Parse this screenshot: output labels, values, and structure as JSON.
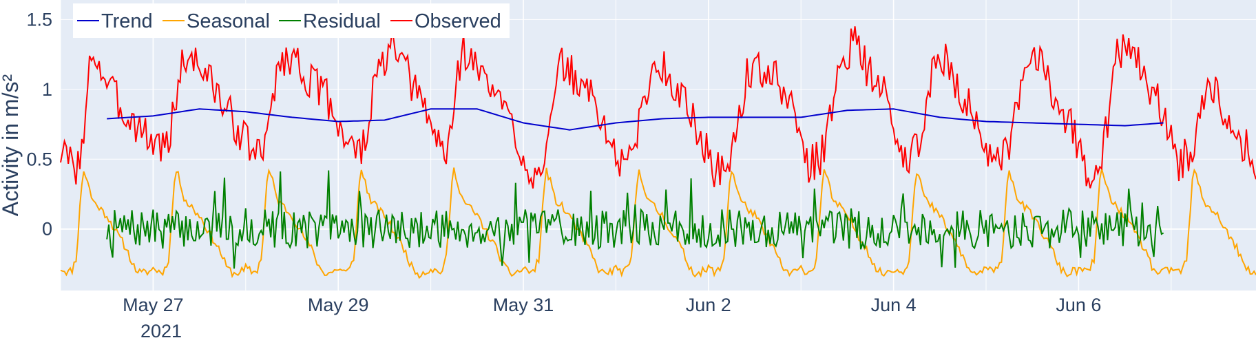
{
  "chart_data": {
    "type": "line",
    "title": "",
    "xlabel": "",
    "ylabel": "Activity in m/s²",
    "x_tick_labels": [
      "May 27",
      "May 29",
      "May 31",
      "Jun 2",
      "Jun 4",
      "Jun 6"
    ],
    "x_year_label": "2021",
    "x_tick_dates": [
      "2021-05-27",
      "2021-05-29",
      "2021-05-31",
      "2021-06-02",
      "2021-06-04",
      "2021-06-06"
    ],
    "xlim": [
      "2021-05-26 00:00",
      "2021-06-07 22:00"
    ],
    "y_ticks": [
      0,
      0.5,
      1,
      1.5
    ],
    "y_tick_labels": [
      "0",
      "0.5",
      "1",
      "1.5"
    ],
    "ylim": [
      -0.44,
      1.64
    ],
    "grid": true,
    "legend_position": "top-left",
    "series": [
      {
        "name": "Trend",
        "color": "#0000cc",
        "x": [
          "2021-05-26 12:00",
          "2021-05-27 00:00",
          "2021-05-27 12:00",
          "2021-05-28 00:00",
          "2021-05-28 12:00",
          "2021-05-29 00:00",
          "2021-05-29 12:00",
          "2021-05-30 00:00",
          "2021-05-30 12:00",
          "2021-05-31 00:00",
          "2021-05-31 12:00",
          "2021-06-01 00:00",
          "2021-06-01 12:00",
          "2021-06-02 00:00",
          "2021-06-02 12:00",
          "2021-06-03 00:00",
          "2021-06-03 12:00",
          "2021-06-04 00:00",
          "2021-06-04 12:00",
          "2021-06-05 00:00",
          "2021-06-05 12:00",
          "2021-06-06 00:00",
          "2021-06-06 12:00",
          "2021-06-06 22:00"
        ],
        "values": [
          0.79,
          0.81,
          0.86,
          0.84,
          0.8,
          0.77,
          0.78,
          0.86,
          0.86,
          0.76,
          0.71,
          0.76,
          0.79,
          0.8,
          0.8,
          0.8,
          0.85,
          0.86,
          0.8,
          0.77,
          0.76,
          0.75,
          0.74,
          0.76
        ]
      },
      {
        "name": "Seasonal",
        "color": "#ffa500",
        "period_hours": 24,
        "profile_hours": [
          0,
          2,
          3,
          4,
          4.5,
          5,
          5.5,
          6,
          7,
          8,
          9,
          10,
          11,
          12,
          13,
          14,
          15,
          16,
          17,
          18,
          19,
          20,
          21,
          22,
          23
        ],
        "profile_values": [
          -0.28,
          -0.31,
          -0.29,
          -0.21,
          -0.05,
          0.15,
          0.33,
          0.42,
          0.34,
          0.23,
          0.18,
          0.16,
          0.12,
          0.1,
          0.05,
          0.0,
          -0.05,
          -0.09,
          -0.14,
          -0.2,
          -0.27,
          -0.3,
          -0.32,
          -0.31,
          -0.3
        ]
      },
      {
        "name": "Residual",
        "color": "#008000",
        "x_start": "2021-05-26 12:00",
        "x_end": "2021-06-06 22:00",
        "center": 0.0,
        "amplitude": 0.14,
        "min": -0.33,
        "max": 0.42
      },
      {
        "name": "Observed",
        "color": "#ff0000",
        "x": [
          "2021-05-26 00:00",
          "2021-05-26 04:00",
          "2021-05-26 06:00",
          "2021-05-26 08:00",
          "2021-05-26 12:00",
          "2021-05-26 16:00",
          "2021-05-26 20:00",
          "2021-05-27 00:00",
          "2021-05-27 04:00",
          "2021-05-27 07:00",
          "2021-05-27 10:00",
          "2021-05-27 14:00",
          "2021-05-27 18:00",
          "2021-05-27 22:00",
          "2021-05-28 02:00",
          "2021-05-28 05:00",
          "2021-05-28 08:00",
          "2021-05-28 12:00",
          "2021-05-28 17:00",
          "2021-05-28 21:00",
          "2021-05-29 02:00",
          "2021-05-29 06:00",
          "2021-05-29 10:00",
          "2021-05-29 14:00",
          "2021-05-29 18:00",
          "2021-05-29 22:00",
          "2021-05-30 04:00",
          "2021-05-30 08:00",
          "2021-05-30 12:00",
          "2021-05-30 16:00",
          "2021-05-30 21:00",
          "2021-05-31 02:00",
          "2021-05-31 06:00",
          "2021-05-31 10:00",
          "2021-05-31 14:00",
          "2021-05-31 18:00",
          "2021-05-31 22:00",
          "2021-06-01 02:00",
          "2021-06-01 06:00",
          "2021-06-01 10:00",
          "2021-06-01 14:00",
          "2021-06-01 18:00",
          "2021-06-01 22:00",
          "2021-06-02 02:00",
          "2021-06-02 06:00",
          "2021-06-02 10:00",
          "2021-06-02 14:00",
          "2021-06-02 18:00",
          "2021-06-02 22:00",
          "2021-06-03 02:00",
          "2021-06-03 06:00",
          "2021-06-03 10:00",
          "2021-06-03 14:00",
          "2021-06-03 18:00",
          "2021-06-03 22:00",
          "2021-06-04 02:00",
          "2021-06-04 06:00",
          "2021-06-04 10:00",
          "2021-06-04 14:00",
          "2021-06-04 18:00",
          "2021-06-04 22:00",
          "2021-06-05 02:00",
          "2021-06-05 06:00",
          "2021-06-05 10:00",
          "2021-06-05 14:00",
          "2021-06-05 18:00",
          "2021-06-05 22:00",
          "2021-06-06 02:00",
          "2021-06-06 06:00",
          "2021-06-06 10:00",
          "2021-06-06 14:00",
          "2021-06-06 18:00",
          "2021-06-06 22:00",
          "2021-06-07 02:00",
          "2021-06-07 06:00",
          "2021-06-07 10:00",
          "2021-06-07 14:00",
          "2021-06-07 18:00",
          "2021-06-07 22:00"
        ],
        "values": [
          0.55,
          0.45,
          0.6,
          1.3,
          1.05,
          0.85,
          0.75,
          0.62,
          0.6,
          1.15,
          1.25,
          1.1,
          0.9,
          0.72,
          0.55,
          0.55,
          1.15,
          1.25,
          1.05,
          0.95,
          0.65,
          0.52,
          1.1,
          1.3,
          1.1,
          0.88,
          0.5,
          1.3,
          1.15,
          1.0,
          0.75,
          0.38,
          0.55,
          1.2,
          1.05,
          0.95,
          0.65,
          0.42,
          0.75,
          1.2,
          1.1,
          0.9,
          0.65,
          0.4,
          0.52,
          1.1,
          1.15,
          1.05,
          0.85,
          0.45,
          0.55,
          1.2,
          1.35,
          1.1,
          0.95,
          0.5,
          0.55,
          1.15,
          1.2,
          0.95,
          0.75,
          0.42,
          0.55,
          1.15,
          1.25,
          0.95,
          0.75,
          0.4,
          0.52,
          1.25,
          1.3,
          1.0,
          0.85,
          0.45,
          0.6,
          1.1,
          0.85,
          0.65,
          0.45
        ]
      }
    ]
  }
}
